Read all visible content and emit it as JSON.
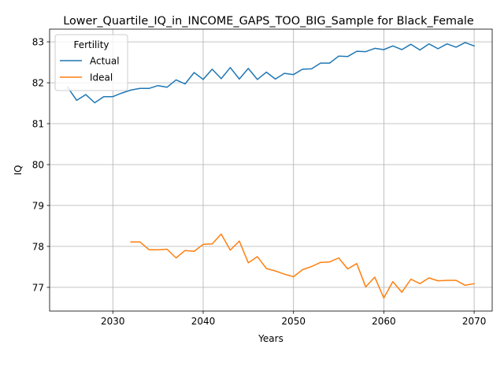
{
  "chart_data": {
    "type": "line",
    "title": "Lower_Quartile_IQ_in_INCOME_GAPS_TOO_BIG_Sample for Black_Female",
    "xlabel": "Years",
    "ylabel": "IQ",
    "xlim": [
      2023,
      2072
    ],
    "ylim": [
      76.42,
      83.31
    ],
    "xticks": [
      2030,
      2040,
      2050,
      2060,
      2070
    ],
    "yticks": [
      77,
      78,
      79,
      80,
      81,
      82,
      83
    ],
    "grid": true,
    "legend": {
      "title": "Fertility",
      "position": "top-left"
    },
    "series": [
      {
        "name": "Actual",
        "color": "#1f77b4",
        "x": [
          2025,
          2026,
          2027,
          2028,
          2029,
          2030,
          2031,
          2032,
          2033,
          2034,
          2035,
          2036,
          2037,
          2038,
          2039,
          2040,
          2041,
          2042,
          2043,
          2044,
          2045,
          2046,
          2047,
          2048,
          2049,
          2050,
          2051,
          2052,
          2053,
          2054,
          2055,
          2056,
          2057,
          2058,
          2059,
          2060,
          2061,
          2062,
          2063,
          2064,
          2065,
          2066,
          2067,
          2068,
          2069,
          2070
        ],
        "y": [
          81.89,
          81.57,
          81.71,
          81.51,
          81.66,
          81.66,
          81.75,
          81.82,
          81.86,
          81.86,
          81.93,
          81.89,
          82.07,
          81.97,
          82.25,
          82.08,
          82.33,
          82.1,
          82.37,
          82.09,
          82.35,
          82.08,
          82.26,
          82.09,
          82.23,
          82.2,
          82.33,
          82.34,
          82.48,
          82.48,
          82.65,
          82.64,
          82.77,
          82.76,
          82.84,
          82.81,
          82.9,
          82.81,
          82.94,
          82.8,
          82.95,
          82.83,
          82.95,
          82.87,
          82.98,
          82.9
        ]
      },
      {
        "name": "Ideal",
        "color": "#ff7f0e",
        "x": [
          2032,
          2033,
          2034,
          2035,
          2036,
          2037,
          2038,
          2039,
          2040,
          2041,
          2042,
          2043,
          2044,
          2045,
          2046,
          2047,
          2048,
          2049,
          2050,
          2051,
          2052,
          2053,
          2054,
          2055,
          2056,
          2057,
          2058,
          2059,
          2060,
          2061,
          2062,
          2063,
          2064,
          2065,
          2066,
          2067,
          2068,
          2069,
          2070
        ],
        "y": [
          78.11,
          78.11,
          77.92,
          77.92,
          77.93,
          77.72,
          77.9,
          77.88,
          78.05,
          78.06,
          78.3,
          77.91,
          78.13,
          77.6,
          77.75,
          77.46,
          77.4,
          77.32,
          77.26,
          77.43,
          77.51,
          77.61,
          77.62,
          77.72,
          77.45,
          77.58,
          77.01,
          77.25,
          76.74,
          77.14,
          76.88,
          77.2,
          77.09,
          77.23,
          77.16,
          77.17,
          77.17,
          77.05,
          77.09
        ]
      }
    ]
  }
}
